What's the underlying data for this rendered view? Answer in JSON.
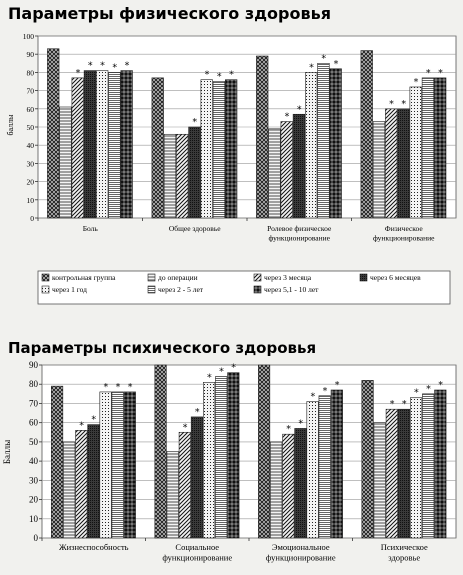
{
  "chart_data": [
    {
      "type": "bar",
      "title": "Параметры физического здоровья",
      "ylabel": "баллы",
      "ylim": [
        0,
        100
      ],
      "yticks": [
        0,
        10,
        20,
        30,
        40,
        50,
        60,
        70,
        80,
        90,
        100
      ],
      "grid": true,
      "legend_position": "bottom",
      "categories": [
        [
          "Боль"
        ],
        [
          "Общее здоровье"
        ],
        [
          "Ролевое физическое",
          "функционирование"
        ],
        [
          "Физическое",
          "функционирование"
        ]
      ],
      "series": [
        {
          "name": "контрольная группа",
          "values": [
            93,
            77,
            89,
            92
          ]
        },
        {
          "name": "до операции",
          "values": [
            61,
            46,
            49,
            53
          ]
        },
        {
          "name": "через 3 месяца",
          "values": [
            77,
            46,
            53,
            60
          ]
        },
        {
          "name": "через 6 месяцев",
          "values": [
            81,
            50,
            57,
            60
          ]
        },
        {
          "name": "через 1 год",
          "values": [
            81,
            76,
            80,
            72
          ]
        },
        {
          "name": "через 2 - 5 лет",
          "values": [
            80,
            75,
            85,
            77
          ]
        },
        {
          "name": "через 5,1 - 10 лет",
          "values": [
            81,
            76,
            82,
            77
          ]
        }
      ],
      "asterisks": [
        [
          false,
          false,
          true,
          true,
          true,
          true,
          true
        ],
        [
          false,
          false,
          false,
          true,
          true,
          true,
          true
        ],
        [
          false,
          false,
          true,
          true,
          true,
          true,
          true
        ],
        [
          false,
          false,
          true,
          true,
          true,
          true,
          true
        ]
      ]
    },
    {
      "type": "bar",
      "title": "Параметры психического здоровья",
      "ylabel": "Баллы",
      "ylim": [
        0,
        90
      ],
      "yticks": [
        0,
        10,
        20,
        30,
        40,
        50,
        60,
        70,
        80,
        90
      ],
      "grid": true,
      "categories": [
        [
          "Жизнеспособность"
        ],
        [
          "Социальное",
          "функционирование"
        ],
        [
          "Эмоциональное",
          "функционирование"
        ],
        [
          "Психическое",
          "здоровье"
        ]
      ],
      "series": [
        {
          "name": "контрольная группа",
          "values": [
            79,
            90,
            90,
            82
          ]
        },
        {
          "name": "до операции",
          "values": [
            50,
            45,
            50,
            60
          ]
        },
        {
          "name": "через 3 месяца",
          "values": [
            56,
            55,
            54,
            67
          ]
        },
        {
          "name": "через 6 месяцев",
          "values": [
            59,
            63,
            57,
            67
          ]
        },
        {
          "name": "через 1 год",
          "values": [
            76,
            81,
            71,
            73
          ]
        },
        {
          "name": "через 2 - 5 лет",
          "values": [
            76,
            84,
            74,
            75
          ]
        },
        {
          "name": "через 5,1 - 10 лет",
          "values": [
            76,
            86,
            77,
            77
          ]
        }
      ],
      "asterisks": [
        [
          false,
          false,
          true,
          true,
          true,
          true,
          true
        ],
        [
          false,
          false,
          true,
          true,
          true,
          true,
          true
        ],
        [
          false,
          false,
          true,
          true,
          true,
          true,
          true
        ],
        [
          false,
          false,
          true,
          true,
          true,
          true,
          true
        ]
      ]
    }
  ]
}
